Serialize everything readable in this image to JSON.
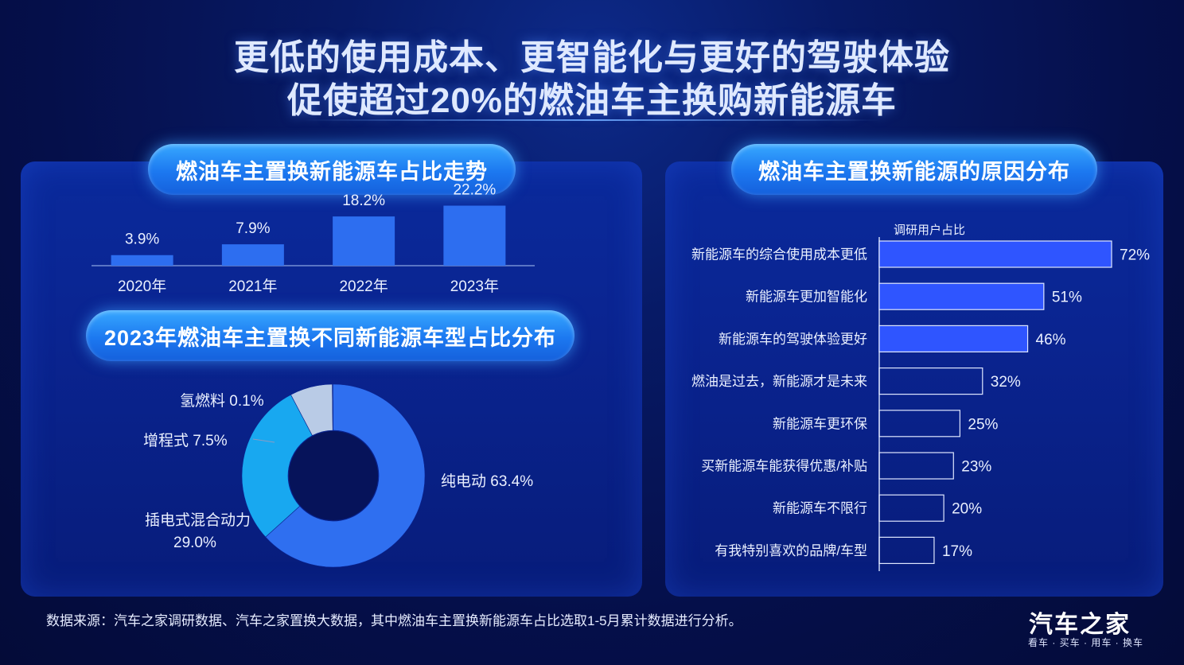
{
  "title": {
    "line1": "更低的使用成本、更智能化与更好的驾驶体验",
    "line2": "促使超过20%的燃油车主换购新能源车"
  },
  "chart_data": [
    {
      "type": "bar",
      "title": "燃油车主置换新能源车占比走势",
      "categories": [
        "2020年",
        "2021年",
        "2022年",
        "2023年"
      ],
      "values": [
        3.9,
        7.9,
        18.2,
        22.2
      ],
      "value_labels": [
        "3.9%",
        "7.9%",
        "18.2%",
        "22.2%"
      ],
      "ylim": [
        0,
        25
      ],
      "bar_color": "#2d6ef0"
    },
    {
      "type": "pie",
      "title": "2023年燃油车主置换不同新能源车型占比分布",
      "slices": [
        {
          "name": "纯电动",
          "value": 63.4,
          "label": "纯电动 63.4%",
          "color": "#2f6ff0"
        },
        {
          "name": "插电式混合动力",
          "value": 29.0,
          "label_line1": "插电式混合动力",
          "label_line2": "29.0%",
          "color": "#18a8f0"
        },
        {
          "name": "增程式",
          "value": 7.5,
          "label": "增程式 7.5%",
          "color": "#b9cbe6"
        },
        {
          "name": "氢燃料",
          "value": 0.1,
          "label": "氢燃料 0.1%",
          "color": "#cfe0f5"
        }
      ]
    },
    {
      "type": "bar",
      "orientation": "horizontal",
      "title": "燃油车主置换新能源的原因分布",
      "axis_label": "调研用户占比",
      "categories": [
        "新能源车的综合使用成本更低",
        "新能源车更加智能化",
        "新能源车的驾驶体验更好",
        "燃油是过去，新能源才是未来",
        "新能源车更环保",
        "买新能源车能获得优惠/补贴",
        "新能源车不限行",
        "有我特别喜欢的品牌/车型"
      ],
      "values": [
        72,
        51,
        46,
        32,
        25,
        23,
        20,
        17
      ],
      "value_labels": [
        "72%",
        "51%",
        "46%",
        "32%",
        "25%",
        "23%",
        "20%",
        "17%"
      ],
      "highlighted": [
        true,
        true,
        true,
        false,
        false,
        false,
        false,
        false
      ],
      "highlight_color": "#2f55ff"
    }
  ],
  "footer": {
    "source": "数据来源：汽车之家调研数据、汽车之家置换大数据，其中燃油车主置换新能源车占比选取1-5月累计数据进行分析。",
    "logo": "汽车之家",
    "slogan": "看车 · 买车 · 用车 · 换车"
  }
}
